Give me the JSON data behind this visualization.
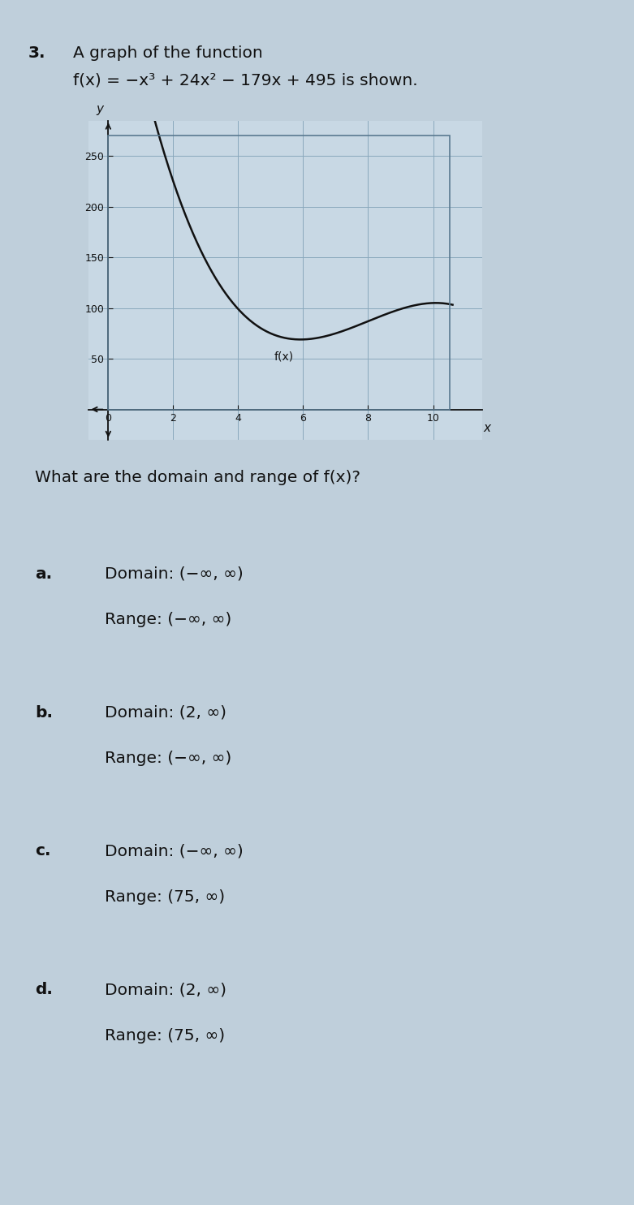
{
  "question_number": "3.",
  "question_text": "A graph of the function",
  "function_text": "f(x) = −x³ + 24x² − 179x + 495 is shown.",
  "x_label": "x",
  "y_label": "y",
  "func_label": "f(x)",
  "x_ticks": [
    0,
    2,
    4,
    6,
    8,
    10
  ],
  "y_ticks": [
    50,
    100,
    150,
    200,
    250
  ],
  "background_color": "#bfcfdb",
  "plot_bg_color": "#c8d8e4",
  "grid_color": "#8aa8bc",
  "curve_color": "#111111",
  "axis_color": "#111111",
  "sub_question_text": "What are the domain and range of f(x)?",
  "options": [
    {
      "label": "a.",
      "line1": "Domain: (−∞, ∞)",
      "line2": "Range: (−∞, ∞)"
    },
    {
      "label": "b.",
      "line1": "Domain: (2, ∞)",
      "line2": "Range: (−∞, ∞)"
    },
    {
      "label": "c.",
      "line1": "Domain: (−∞, ∞)",
      "line2": "Range: (75, ∞)"
    },
    {
      "label": "d.",
      "line1": "Domain: (2, ∞)",
      "line2": "Range: (75, ∞)"
    }
  ],
  "figsize": [
    7.81,
    14.85
  ],
  "dpi": 100
}
